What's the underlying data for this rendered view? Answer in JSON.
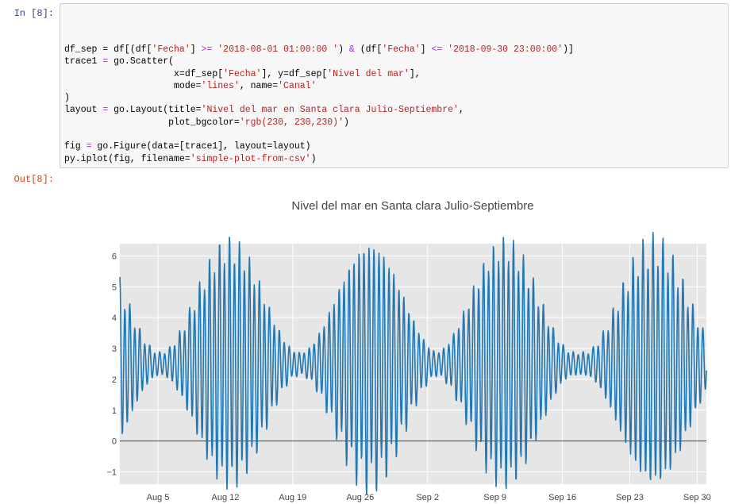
{
  "cell_in": {
    "prompt": "In [8]:",
    "code_lines": [
      [
        {
          "t": "df_sep = df[(df[",
          "c": ""
        },
        {
          "t": "'Fecha'",
          "c": "str"
        },
        {
          "t": "] ",
          "c": ""
        },
        {
          "t": ">=",
          "c": "kw-op"
        },
        {
          "t": " ",
          "c": ""
        },
        {
          "t": "'2018-08-01 01:00:00 '",
          "c": "str"
        },
        {
          "t": ") ",
          "c": ""
        },
        {
          "t": "&",
          "c": "kw-op"
        },
        {
          "t": " (df[",
          "c": ""
        },
        {
          "t": "'Fecha'",
          "c": "str"
        },
        {
          "t": "] ",
          "c": ""
        },
        {
          "t": "<=",
          "c": "kw-op"
        },
        {
          "t": " ",
          "c": ""
        },
        {
          "t": "'2018-09-30 23:00:00'",
          "c": "str"
        },
        {
          "t": ")]",
          "c": ""
        }
      ],
      [
        {
          "t": "trace1 ",
          "c": ""
        },
        {
          "t": "=",
          "c": "kw-op"
        },
        {
          "t": " go.Scatter(",
          "c": ""
        }
      ],
      [
        {
          "t": "                    x=df_sep[",
          "c": ""
        },
        {
          "t": "'Fecha'",
          "c": "str"
        },
        {
          "t": "], y=df_sep[",
          "c": ""
        },
        {
          "t": "'Nivel del mar'",
          "c": "str"
        },
        {
          "t": "],",
          "c": ""
        }
      ],
      [
        {
          "t": "                    mode=",
          "c": ""
        },
        {
          "t": "'lines'",
          "c": "str"
        },
        {
          "t": ", name=",
          "c": ""
        },
        {
          "t": "'Canal'",
          "c": "str"
        }
      ],
      [
        {
          "t": ")",
          "c": ""
        }
      ],
      [
        {
          "t": "layout ",
          "c": ""
        },
        {
          "t": "=",
          "c": "kw-op"
        },
        {
          "t": " go.Layout(title=",
          "c": ""
        },
        {
          "t": "'Nivel del mar en Santa clara Julio-Septiembre'",
          "c": "str"
        },
        {
          "t": ",",
          "c": ""
        }
      ],
      [
        {
          "t": "                   plot_bgcolor=",
          "c": ""
        },
        {
          "t": "'rgb(230, 230,230)'",
          "c": "str"
        },
        {
          "t": ")",
          "c": ""
        }
      ],
      [
        {
          "t": "",
          "c": ""
        }
      ],
      [
        {
          "t": "fig ",
          "c": ""
        },
        {
          "t": "=",
          "c": "kw-op"
        },
        {
          "t": " go.Figure(data=[trace1], layout=layout)",
          "c": ""
        }
      ],
      [
        {
          "t": "py.iplot(fig, filename=",
          "c": ""
        },
        {
          "t": "'simple-plot-from-csv'",
          "c": "str"
        },
        {
          "t": ")",
          "c": ""
        }
      ]
    ]
  },
  "cell_out": {
    "prompt": "Out[8]:"
  },
  "chart_data": {
    "type": "line",
    "title": "Nivel del mar en Santa clara Julio-Septiembre",
    "xlabel": "",
    "ylabel": "",
    "x_range": [
      "2018-08-01 01:00",
      "2018-09-30 23:00"
    ],
    "ylim": [
      -1.4,
      6.4
    ],
    "y_ticks": [
      -1,
      0,
      1,
      2,
      3,
      4,
      5,
      6
    ],
    "x_ticks": [
      {
        "date": "2018-08-05",
        "label": "Aug 5"
      },
      {
        "date": "2018-08-12",
        "label": "Aug 12"
      },
      {
        "date": "2018-08-19",
        "label": "Aug 19"
      },
      {
        "date": "2018-08-26",
        "label": "Aug 26"
      },
      {
        "date": "2018-09-02",
        "label": "Sep 2"
      },
      {
        "date": "2018-09-09",
        "label": "Sep 9"
      },
      {
        "date": "2018-09-16",
        "label": "Sep 16"
      },
      {
        "date": "2018-09-23",
        "label": "Sep 23"
      },
      {
        "date": "2018-09-30",
        "label": "Sep 30"
      }
    ],
    "grid": true,
    "plot_bgcolor": "#e6e6e6",
    "series": [
      {
        "color": "#1f77b4",
        "tide_model": {
          "mean": 2.5,
          "amp_min": 0.35,
          "amp_max": 3.75,
          "period_hours": 12.42,
          "peak_dates": [
            "2018-08-12 12:00",
            "2018-08-27 00:00",
            "2018-09-10 00:00",
            "2018-09-25 12:00"
          ],
          "neap_dates": [
            "2018-08-05 00:00",
            "2018-08-19 12:00",
            "2018-09-03 00:00",
            "2018-09-17 12:00"
          ]
        }
      }
    ]
  }
}
